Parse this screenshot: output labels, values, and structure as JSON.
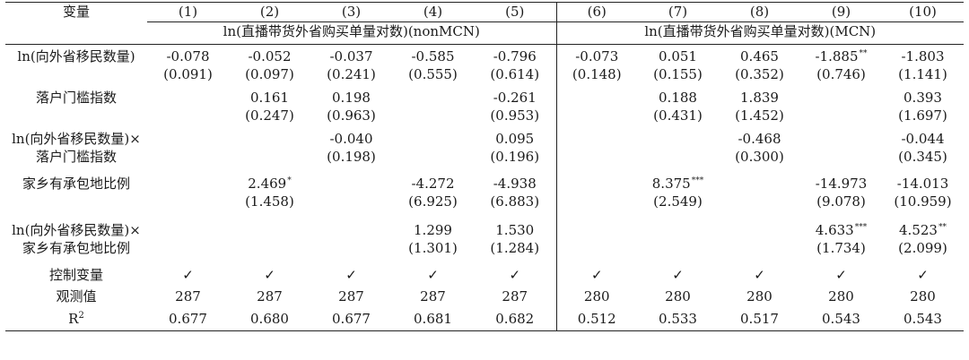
{
  "header": {
    "var_label": "变量",
    "col_numbers": [
      "(1)",
      "(2)",
      "(3)",
      "(4)",
      "(5)",
      "(6)",
      "(7)",
      "(8)",
      "(9)",
      "(10)"
    ],
    "dv_nonmcn": "ln(直播带货外省购买单量对数)(nonMCN)",
    "dv_mcn": "ln(直播带货外省购买单量对数)(MCN)"
  },
  "rows": {
    "r1": {
      "label_lines": [
        "ln(向外省移民数量)"
      ],
      "cells": [
        {
          "coef": "-0.078",
          "se": "(0.091)",
          "stars": ""
        },
        {
          "coef": "-0.052",
          "se": "(0.097)",
          "stars": ""
        },
        {
          "coef": "-0.037",
          "se": "(0.241)",
          "stars": ""
        },
        {
          "coef": "-0.585",
          "se": "(0.555)",
          "stars": ""
        },
        {
          "coef": "-0.796",
          "se": "(0.614)",
          "stars": ""
        },
        {
          "coef": "-0.073",
          "se": "(0.148)",
          "stars": ""
        },
        {
          "coef": "0.051",
          "se": "(0.155)",
          "stars": ""
        },
        {
          "coef": "0.465",
          "se": "(0.352)",
          "stars": ""
        },
        {
          "coef": "-1.885",
          "se": "(0.746)",
          "stars": "**"
        },
        {
          "coef": "-1.803",
          "se": "(1.141)",
          "stars": ""
        }
      ]
    },
    "r2": {
      "label_lines": [
        "落户门槛指数"
      ],
      "cells": [
        {
          "coef": "",
          "se": "",
          "stars": ""
        },
        {
          "coef": "0.161",
          "se": "(0.247)",
          "stars": ""
        },
        {
          "coef": "0.198",
          "se": "(0.963)",
          "stars": ""
        },
        {
          "coef": "",
          "se": "",
          "stars": ""
        },
        {
          "coef": "-0.261",
          "se": "(0.953)",
          "stars": ""
        },
        {
          "coef": "",
          "se": "",
          "stars": ""
        },
        {
          "coef": "0.188",
          "se": "(0.431)",
          "stars": ""
        },
        {
          "coef": "1.839",
          "se": "(1.452)",
          "stars": ""
        },
        {
          "coef": "",
          "se": "",
          "stars": ""
        },
        {
          "coef": "0.393",
          "se": "(1.697)",
          "stars": ""
        }
      ]
    },
    "r3": {
      "label_lines": [
        "ln(向外省移民数量)×",
        "落户门槛指数"
      ],
      "cells": [
        {
          "coef": "",
          "se": "",
          "stars": ""
        },
        {
          "coef": "",
          "se": "",
          "stars": ""
        },
        {
          "coef": "-0.040",
          "se": "(0.198)",
          "stars": ""
        },
        {
          "coef": "",
          "se": "",
          "stars": ""
        },
        {
          "coef": "0.095",
          "se": "(0.196)",
          "stars": ""
        },
        {
          "coef": "",
          "se": "",
          "stars": ""
        },
        {
          "coef": "",
          "se": "",
          "stars": ""
        },
        {
          "coef": "-0.468",
          "se": "(0.300)",
          "stars": ""
        },
        {
          "coef": "",
          "se": "",
          "stars": ""
        },
        {
          "coef": "-0.044",
          "se": "(0.345)",
          "stars": ""
        }
      ]
    },
    "r4": {
      "label_lines": [
        "家乡有承包地比例"
      ],
      "cells": [
        {
          "coef": "",
          "se": "",
          "stars": ""
        },
        {
          "coef": "2.469",
          "se": "(1.458)",
          "stars": "*"
        },
        {
          "coef": "",
          "se": "",
          "stars": ""
        },
        {
          "coef": "-4.272",
          "se": "(6.925)",
          "stars": ""
        },
        {
          "coef": "-4.938",
          "se": "(6.883)",
          "stars": ""
        },
        {
          "coef": "",
          "se": "",
          "stars": ""
        },
        {
          "coef": "8.375",
          "se": "(2.549)",
          "stars": "***"
        },
        {
          "coef": "",
          "se": "",
          "stars": ""
        },
        {
          "coef": "-14.973",
          "se": "(9.078)",
          "stars": ""
        },
        {
          "coef": "-14.013",
          "se": "(10.959)",
          "stars": ""
        }
      ]
    },
    "r5": {
      "label_lines": [
        "ln(向外省移民数量)×",
        "家乡有承包地比例"
      ],
      "cells": [
        {
          "coef": "",
          "se": "",
          "stars": ""
        },
        {
          "coef": "",
          "se": "",
          "stars": ""
        },
        {
          "coef": "",
          "se": "",
          "stars": ""
        },
        {
          "coef": "1.299",
          "se": "(1.301)",
          "stars": ""
        },
        {
          "coef": "1.530",
          "se": "(1.284)",
          "stars": ""
        },
        {
          "coef": "",
          "se": "",
          "stars": ""
        },
        {
          "coef": "",
          "se": "",
          "stars": ""
        },
        {
          "coef": "",
          "se": "",
          "stars": ""
        },
        {
          "coef": "4.633",
          "se": "(1.734)",
          "stars": "***"
        },
        {
          "coef": "4.523",
          "se": "(2.099)",
          "stars": "**"
        }
      ]
    },
    "r6": {
      "label_lines": [
        "控制变量"
      ],
      "values": [
        "✓",
        "✓",
        "✓",
        "✓",
        "✓",
        "✓",
        "✓",
        "✓",
        "✓",
        "✓"
      ]
    },
    "r7": {
      "label_lines": [
        "观测值"
      ],
      "values": [
        "287",
        "287",
        "287",
        "287",
        "287",
        "280",
        "280",
        "280",
        "280",
        "280"
      ]
    },
    "r8": {
      "label_base": "R",
      "label_sup": "2",
      "values": [
        "0.677",
        "0.680",
        "0.677",
        "0.681",
        "0.682",
        "0.512",
        "0.533",
        "0.517",
        "0.543",
        "0.543"
      ]
    }
  }
}
